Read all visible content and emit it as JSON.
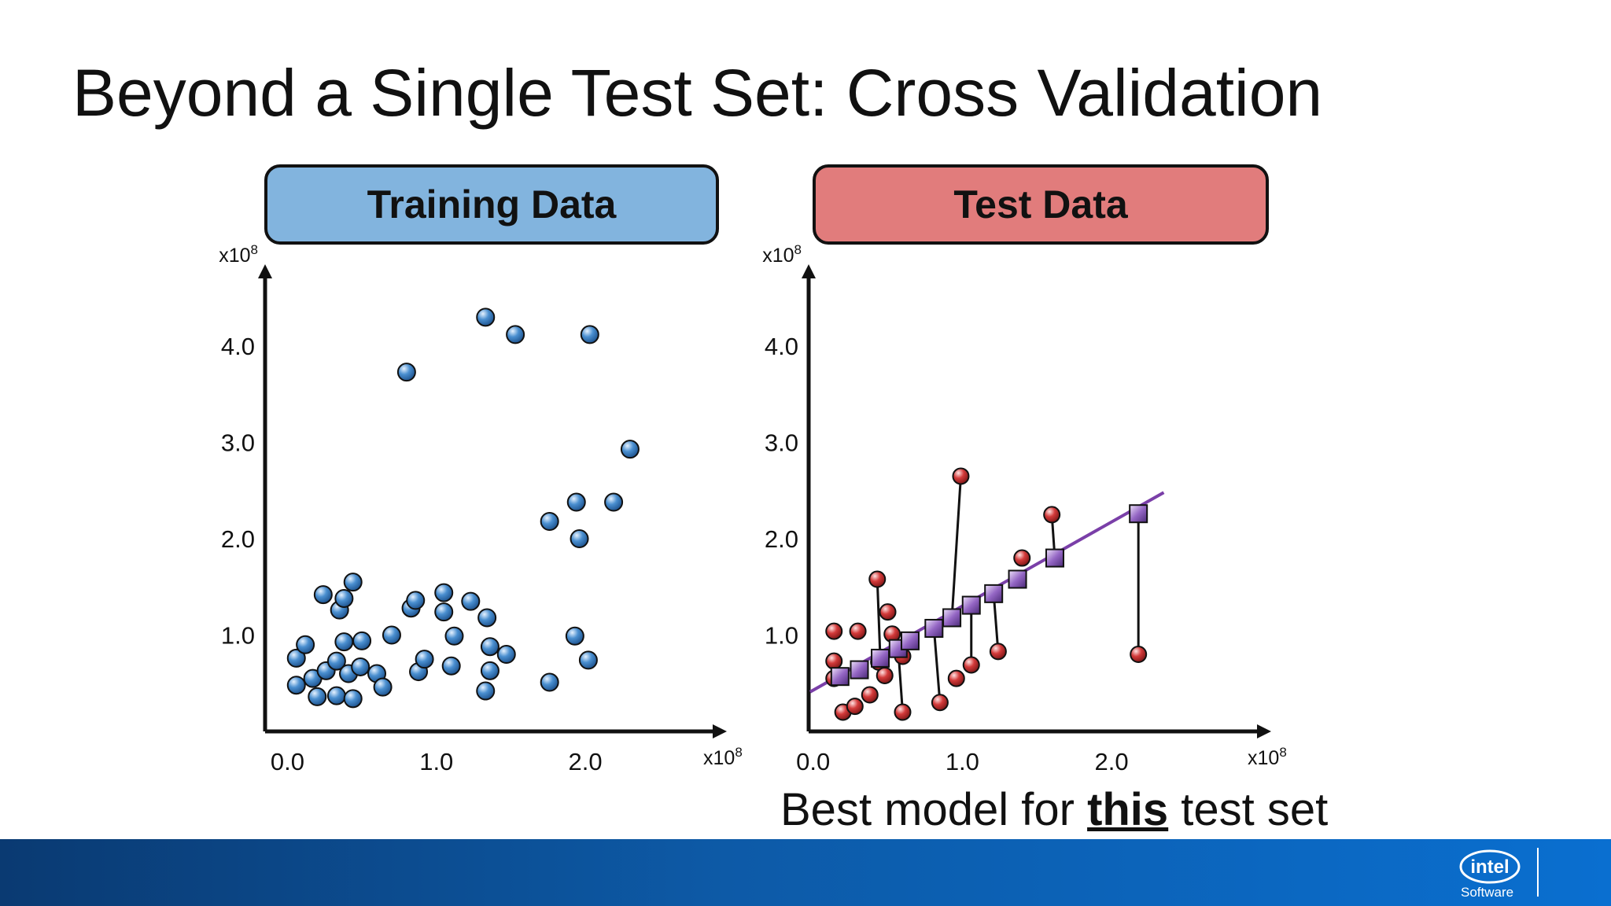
{
  "slide": {
    "title": "Beyond a Single Test Set: Cross Validation",
    "caption_prefix": "Best model for ",
    "caption_emphasis": "this",
    "caption_suffix": " test set",
    "logo_text": "Software",
    "logo_brand": "intel"
  },
  "colors": {
    "train_panel": "#82b4de",
    "test_panel": "#e17c7c",
    "train_point": "#4a8fd0",
    "test_point": "#d33a3a",
    "model_point": "#9466c4",
    "model_line": "#7a3fa8",
    "footer": "#0d5aa7"
  },
  "chart_data": [
    {
      "type": "scatter",
      "label": "Training Data",
      "x_multiplier": "x10",
      "y_multiplier": "x10",
      "exponent": "8",
      "xlim": [
        -0.15,
        2.95
      ],
      "ylim": [
        0,
        4.85
      ],
      "xticks": [
        "0.0",
        "1.0",
        "2.0"
      ],
      "xtick_values": [
        0,
        1,
        2
      ],
      "yticks": [
        "1.0",
        "2.0",
        "3.0",
        "4.0"
      ],
      "ytick_values": [
        1,
        2,
        3,
        4
      ],
      "points": [
        [
          0.06,
          0.48
        ],
        [
          0.06,
          0.76
        ],
        [
          0.12,
          0.9
        ],
        [
          0.17,
          0.55
        ],
        [
          0.2,
          0.36
        ],
        [
          0.24,
          1.42
        ],
        [
          0.26,
          0.63
        ],
        [
          0.33,
          0.73
        ],
        [
          0.33,
          0.37
        ],
        [
          0.35,
          1.26
        ],
        [
          0.38,
          0.93
        ],
        [
          0.38,
          1.38
        ],
        [
          0.41,
          0.6
        ],
        [
          0.44,
          1.55
        ],
        [
          0.44,
          0.34
        ],
        [
          0.49,
          0.67
        ],
        [
          0.5,
          0.94
        ],
        [
          0.6,
          0.6
        ],
        [
          0.64,
          0.46
        ],
        [
          0.7,
          1.0
        ],
        [
          0.8,
          3.73
        ],
        [
          0.83,
          1.28
        ],
        [
          0.86,
          1.36
        ],
        [
          0.88,
          0.62
        ],
        [
          0.92,
          0.75
        ],
        [
          1.05,
          1.44
        ],
        [
          1.05,
          1.24
        ],
        [
          1.1,
          0.68
        ],
        [
          1.12,
          0.99
        ],
        [
          1.23,
          1.35
        ],
        [
          1.33,
          4.3
        ],
        [
          1.33,
          0.42
        ],
        [
          1.34,
          1.18
        ],
        [
          1.36,
          0.88
        ],
        [
          1.36,
          0.63
        ],
        [
          1.47,
          0.8
        ],
        [
          1.53,
          4.12
        ],
        [
          1.76,
          0.51
        ],
        [
          1.76,
          2.18
        ],
        [
          1.93,
          0.99
        ],
        [
          1.94,
          2.38
        ],
        [
          1.96,
          2.0
        ],
        [
          2.02,
          0.74
        ],
        [
          2.03,
          4.12
        ],
        [
          2.19,
          2.38
        ],
        [
          2.3,
          2.93
        ]
      ]
    },
    {
      "type": "scatter",
      "label": "Test Data",
      "x_multiplier": "x10",
      "y_multiplier": "x10",
      "exponent": "8",
      "xlim": [
        -0.03,
        3.07
      ],
      "ylim": [
        0,
        4.85
      ],
      "xticks": [
        "0.0",
        "1.0",
        "2.0"
      ],
      "xtick_values": [
        0,
        1,
        2
      ],
      "yticks": [
        "1.0",
        "2.0",
        "3.0",
        "4.0"
      ],
      "ytick_values": [
        1,
        2,
        3,
        4
      ],
      "model_line": [
        [
          -0.02,
          0.41
        ],
        [
          2.35,
          2.48
        ]
      ],
      "test_points": [
        [
          0.14,
          1.04
        ],
        [
          0.14,
          0.73
        ],
        [
          0.14,
          0.55
        ],
        [
          0.2,
          0.2
        ],
        [
          0.28,
          0.26
        ],
        [
          0.3,
          1.04
        ],
        [
          0.38,
          0.38
        ],
        [
          0.43,
          1.58
        ],
        [
          0.44,
          0.72
        ],
        [
          0.48,
          0.58
        ],
        [
          0.5,
          1.24
        ],
        [
          0.53,
          1.01
        ],
        [
          0.6,
          0.78
        ],
        [
          0.6,
          0.2
        ],
        [
          0.85,
          0.3
        ],
        [
          0.96,
          0.55
        ],
        [
          0.99,
          2.65
        ],
        [
          1.06,
          0.69
        ],
        [
          1.24,
          0.83
        ],
        [
          1.4,
          1.8
        ],
        [
          1.6,
          2.25
        ],
        [
          2.18,
          0.8
        ]
      ],
      "model_points": [
        [
          0.18,
          0.57
        ],
        [
          0.31,
          0.64
        ],
        [
          0.45,
          0.76
        ],
        [
          0.57,
          0.86
        ],
        [
          0.65,
          0.94
        ],
        [
          0.81,
          1.07
        ],
        [
          0.93,
          1.18
        ],
        [
          1.06,
          1.31
        ],
        [
          1.21,
          1.43
        ],
        [
          1.37,
          1.58
        ],
        [
          1.62,
          1.8
        ],
        [
          2.18,
          2.26
        ]
      ],
      "residuals": [
        [
          0.43,
          1.58,
          0.45,
          0.76
        ],
        [
          0.48,
          0.58,
          0.45,
          0.76
        ],
        [
          0.6,
          0.2,
          0.57,
          0.86
        ],
        [
          0.85,
          0.3,
          0.81,
          1.07
        ],
        [
          0.99,
          2.65,
          0.93,
          1.18
        ],
        [
          1.06,
          0.69,
          1.06,
          1.31
        ],
        [
          1.24,
          0.83,
          1.21,
          1.43
        ],
        [
          1.6,
          2.25,
          1.62,
          1.8
        ],
        [
          2.18,
          0.8,
          2.18,
          2.26
        ]
      ]
    }
  ]
}
